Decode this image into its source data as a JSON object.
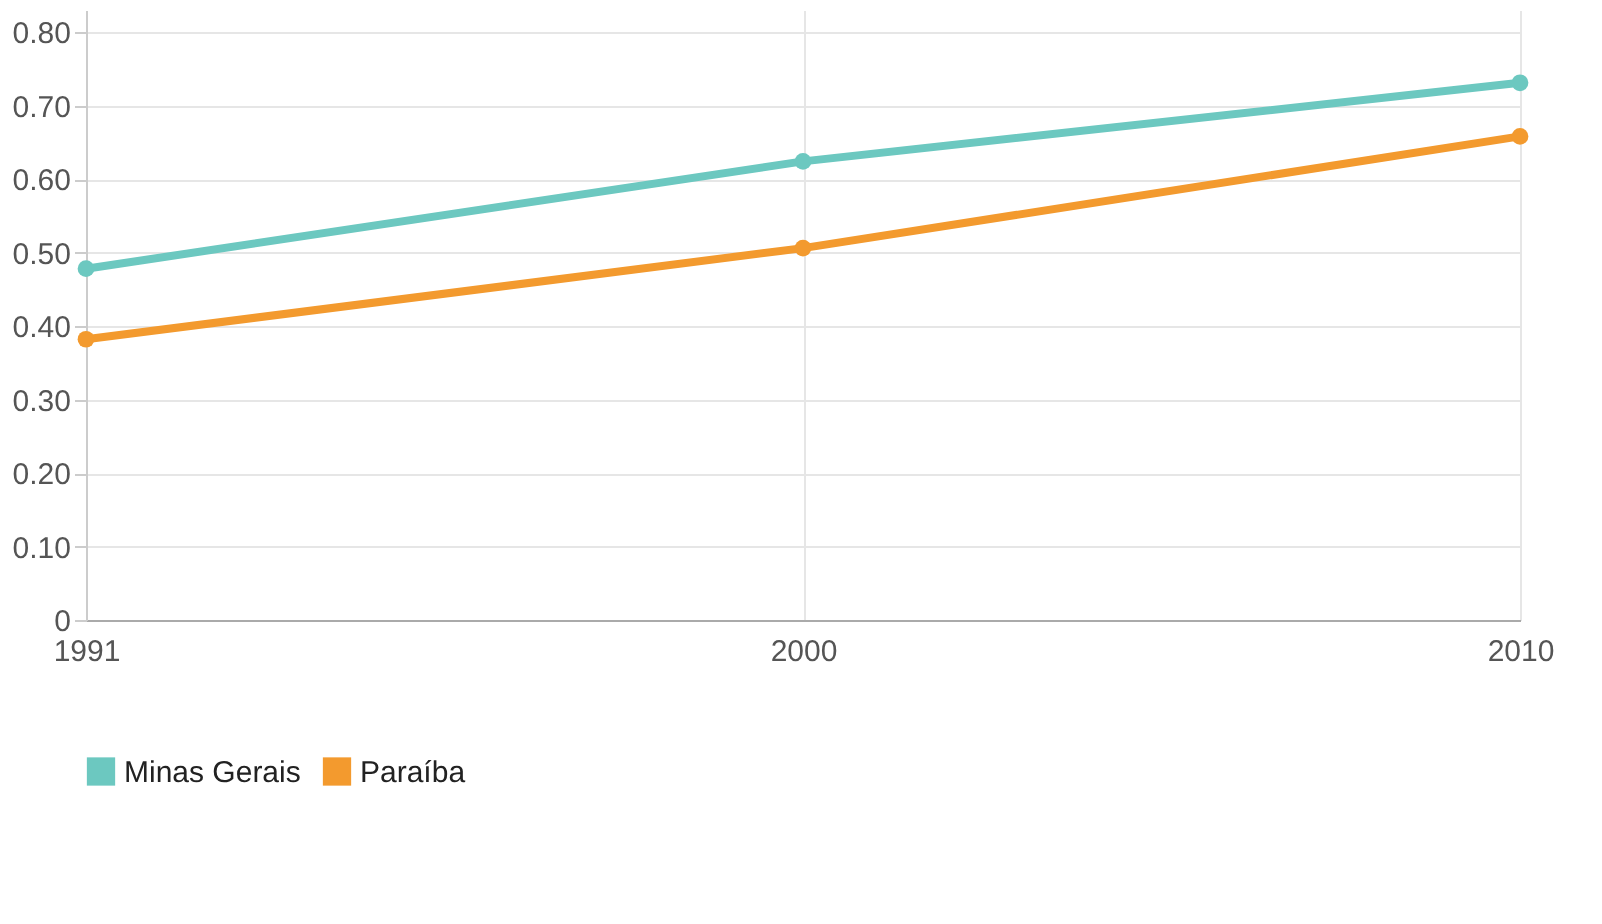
{
  "chart_data": {
    "type": "line",
    "categories": [
      "1991",
      "2000",
      "2010"
    ],
    "series": [
      {
        "name": "Minas Gerais",
        "color": "#6cc8c0",
        "values": [
          0.478,
          0.624,
          0.731
        ]
      },
      {
        "name": "Paraíba",
        "color": "#f39a2e",
        "values": [
          0.382,
          0.506,
          0.658
        ]
      }
    ],
    "ylim": [
      0,
      0.83
    ],
    "yticks": [
      0,
      {
        "value": 0.1,
        "label": "0.10"
      },
      {
        "value": 0.2,
        "label": "0.20"
      },
      {
        "value": 0.3,
        "label": "0.30"
      },
      {
        "value": 0.4,
        "label": "0.40"
      },
      {
        "value": 0.5,
        "label": "0.50"
      },
      {
        "value": 0.6,
        "label": "0.60"
      },
      {
        "value": 0.7,
        "label": "0.70"
      },
      {
        "value": 0.8,
        "label": "0.80"
      }
    ],
    "grid": true,
    "legend": "bottom left",
    "marker": "circle",
    "line_style": "solid"
  }
}
